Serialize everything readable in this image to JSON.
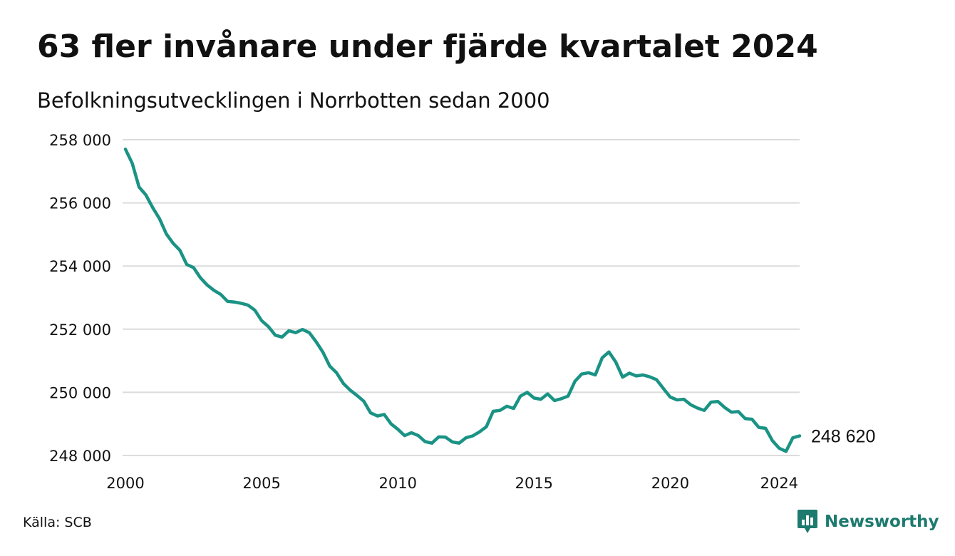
{
  "header": {
    "title": "63 fler invånare under fjärde kvartalet 2024",
    "subtitle": "Befolkningsutvecklingen i Norrbotten sedan 2000"
  },
  "footer": {
    "source": "Källa: SCB",
    "brand": "Newsworthy",
    "brand_icon": "bar-chart-speech-bubble-icon",
    "brand_color": "#1d7a6e"
  },
  "chart_data": {
    "type": "line",
    "title": "63 fler invånare under fjärde kvartalet 2024",
    "subtitle": "Befolkningsutvecklingen i Norrbotten sedan 2000",
    "xlabel": "",
    "ylabel": "",
    "xlim": [
      2000,
      2024.75
    ],
    "ylim": [
      248000,
      258000
    ],
    "grid": true,
    "line_color": "#1a9385",
    "x_ticks": [
      2000,
      2005,
      2010,
      2015,
      2020,
      2024
    ],
    "y_ticks": [
      248000,
      250000,
      252000,
      254000,
      256000,
      258000
    ],
    "y_tick_labels": [
      "248 000",
      "250 000",
      "252 000",
      "254 000",
      "256 000",
      "258 000"
    ],
    "end_label": "248 620",
    "series": [
      {
        "x": [
          2000.0,
          2000.25,
          2000.5,
          2000.75,
          2001.0,
          2001.25,
          2001.5,
          2001.75,
          2002.0,
          2002.25,
          2002.5,
          2002.75,
          2003.0,
          2003.25,
          2003.5,
          2003.75,
          2004.0,
          2004.25,
          2004.5,
          2004.75,
          2005.0,
          2005.25,
          2005.5,
          2005.75,
          2006.0,
          2006.25,
          2006.5,
          2006.75,
          2007.0,
          2007.25,
          2007.5,
          2007.75,
          2008.0,
          2008.25,
          2008.5,
          2008.75,
          2009.0,
          2009.25,
          2009.5,
          2009.75,
          2010.0,
          2010.25,
          2010.5,
          2010.75,
          2011.0,
          2011.25,
          2011.5,
          2011.75,
          2012.0,
          2012.25,
          2012.5,
          2012.75,
          2013.0,
          2013.25,
          2013.5,
          2013.75,
          2014.0,
          2014.25,
          2014.5,
          2014.75,
          2015.0,
          2015.25,
          2015.5,
          2015.75,
          2016.0,
          2016.25,
          2016.5,
          2016.75,
          2017.0,
          2017.25,
          2017.5,
          2017.75,
          2018.0,
          2018.25,
          2018.5,
          2018.75,
          2019.0,
          2019.25,
          2019.5,
          2019.75,
          2020.0,
          2020.25,
          2020.5,
          2020.75,
          2021.0,
          2021.25,
          2021.5,
          2021.75,
          2022.0,
          2022.25,
          2022.5,
          2022.75,
          2023.0,
          2023.25,
          2023.5,
          2023.75,
          2024.0,
          2024.25,
          2024.5,
          2024.75
        ],
        "values": [
          257700,
          257250,
          256500,
          256250,
          255850,
          255500,
          255020,
          254720,
          254500,
          254050,
          253950,
          253630,
          253400,
          253230,
          253100,
          252880,
          252860,
          252820,
          252760,
          252600,
          252270,
          252080,
          251810,
          251750,
          251950,
          251890,
          251990,
          251890,
          251600,
          251270,
          250830,
          250620,
          250280,
          250070,
          249900,
          249720,
          249350,
          249250,
          249300,
          249000,
          248830,
          248630,
          248720,
          248630,
          248440,
          248390,
          248590,
          248580,
          248430,
          248390,
          248560,
          248620,
          248750,
          248910,
          249400,
          249430,
          249560,
          249490,
          249880,
          250000,
          249820,
          249780,
          249950,
          249740,
          249800,
          249880,
          250350,
          250580,
          250620,
          250550,
          251090,
          251280,
          250960,
          250480,
          250610,
          250520,
          250550,
          250490,
          250400,
          250120,
          249850,
          249760,
          249780,
          249610,
          249500,
          249430,
          249690,
          249710,
          249520,
          249370,
          249390,
          249170,
          249150,
          248890,
          248860,
          248470,
          248230,
          248130,
          248560,
          248620
        ]
      }
    ]
  }
}
